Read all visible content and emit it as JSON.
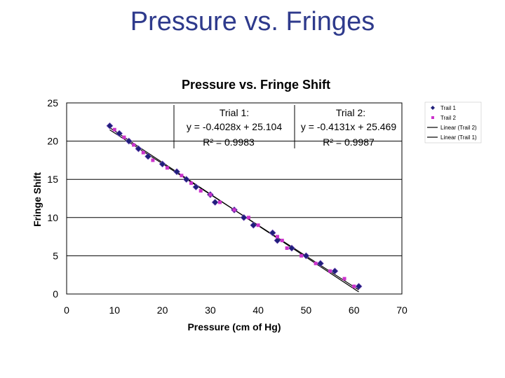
{
  "slide": {
    "title": "Pressure vs. Fringes"
  },
  "annotations": {
    "trial1": {
      "name": "Trial 1:",
      "equation": "y = -0.4028x + 25.104",
      "r2": "R² = 0.9983"
    },
    "trial2": {
      "name": "Trial 2:",
      "equation": "y = -0.4131x + 25.469",
      "r2": "R² = 0.9987"
    }
  },
  "chart_data": {
    "type": "scatter",
    "title": "Pressure vs. Fringe Shift",
    "xlabel": "Pressure (cm of Hg)",
    "ylabel": "Fringe Shift",
    "xlim": [
      0,
      70
    ],
    "ylim": [
      0,
      25
    ],
    "xticks": [
      "0",
      "10",
      "20",
      "30",
      "40",
      "50",
      "60",
      "70"
    ],
    "yticks": [
      "0",
      "5",
      "10",
      "15",
      "20",
      "25"
    ],
    "grid": "horizontal",
    "legend_position": "right",
    "series": [
      {
        "name": "Trail 1",
        "marker": "diamond",
        "color": "#1f1f7a",
        "x": [
          9,
          11,
          13,
          15,
          17,
          20,
          23,
          25,
          27,
          30,
          31,
          35,
          37,
          39,
          43,
          44,
          47,
          50,
          53,
          56,
          61
        ],
        "y": [
          22,
          21,
          20,
          19,
          18,
          17,
          16,
          15,
          14,
          13,
          12,
          11,
          10,
          9,
          8,
          7,
          6,
          5,
          4,
          3,
          1
        ]
      },
      {
        "name": "Trail 2",
        "marker": "square",
        "color": "#cc33cc",
        "x": [
          10,
          12,
          14,
          16,
          18,
          21,
          24,
          26,
          28,
          30,
          32,
          35,
          38,
          40,
          44,
          45,
          46,
          49,
          52,
          55,
          58,
          60
        ],
        "y": [
          21.5,
          20.5,
          19.5,
          18.5,
          17.5,
          16.5,
          15.5,
          14.5,
          13.5,
          13,
          12,
          11,
          10,
          9,
          7.5,
          7,
          6,
          5,
          4,
          3,
          2,
          1
        ]
      },
      {
        "name": "Linear (Trail 2)",
        "type": "trendline",
        "color": "#000000",
        "slope": -0.4131,
        "intercept": 25.469,
        "x_range": [
          9,
          61
        ]
      },
      {
        "name": "Linear (Trail 1)",
        "type": "trendline",
        "color": "#000000",
        "slope": -0.4028,
        "intercept": 25.104,
        "x_range": [
          9,
          61
        ]
      }
    ]
  }
}
